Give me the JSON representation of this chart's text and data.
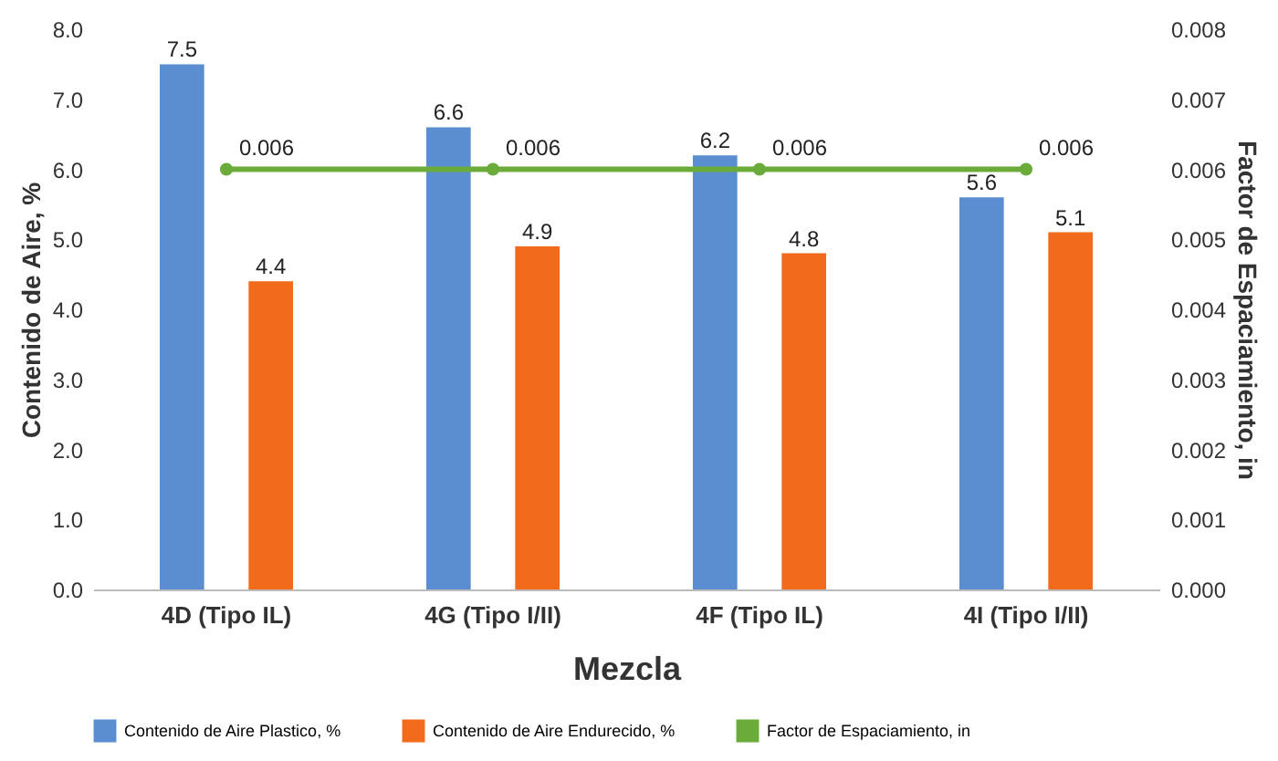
{
  "chart_data": {
    "type": "bar",
    "xlabel": "Mezcla",
    "ylabel": "Contenido de Aire, %",
    "y2label": "Factor de Espaciamiento, in",
    "categories": [
      "4D (Tipo IL)",
      "4G (Tipo I/II)",
      "4F (Tipo IL)",
      "4I (Tipo I/II)"
    ],
    "series": [
      {
        "name": "Contenido de Aire Plastico, %",
        "color": "#5b8ed1",
        "values": [
          7.5,
          6.6,
          6.2,
          5.6
        ]
      },
      {
        "name": "Contenido de Aire Endurecido, %",
        "color": "#f26a1b",
        "values": [
          4.4,
          4.9,
          4.8,
          5.1
        ]
      },
      {
        "name": "Factor de Espaciamiento, in",
        "type": "line",
        "axis": "y2",
        "color": "#6aab3a",
        "values": [
          0.006,
          0.006,
          0.006,
          0.006
        ],
        "marker": "circle"
      }
    ],
    "ylim": [
      0,
      8
    ],
    "yticks": [
      {
        "value": 0,
        "label": "0.0"
      },
      {
        "value": 1,
        "label": "1.0"
      },
      {
        "value": 2,
        "label": "2.0"
      },
      {
        "value": 3,
        "label": "3.0"
      },
      {
        "value": 4,
        "label": "4.0"
      },
      {
        "value": 5,
        "label": "5.0"
      },
      {
        "value": 6,
        "label": "6.0"
      },
      {
        "value": 7,
        "label": "7.0"
      },
      {
        "value": 8,
        "label": "8.0"
      }
    ],
    "y2lim": [
      0,
      0.008
    ],
    "y2ticks": [
      {
        "value": 0,
        "label": "0.000"
      },
      0.001,
      0.002,
      0.003,
      0.004,
      0.005,
      0.006,
      0.007,
      0.008
    ],
    "data_labels": true,
    "legend": "bottom",
    "grid": false
  }
}
